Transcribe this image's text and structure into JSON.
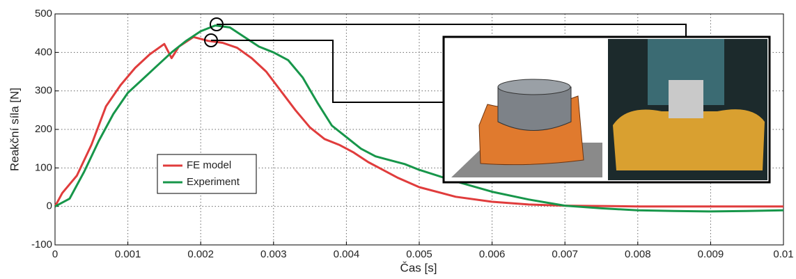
{
  "chart_data": {
    "type": "line",
    "x_label": "Čas [s]",
    "y_label": "Reakční síla [N]",
    "xlim": [
      0,
      0.01
    ],
    "ylim": [
      -100,
      500
    ],
    "xticks": [
      0,
      0.001,
      0.002,
      0.003,
      0.004,
      0.005,
      0.006,
      0.007,
      0.008,
      0.009,
      0.01
    ],
    "yticks": [
      -100,
      0,
      100,
      200,
      300,
      400,
      500
    ],
    "grid": true,
    "legend": "center left",
    "series": [
      {
        "name": "FE model",
        "color": "#e03c3c",
        "x": [
          0,
          0.0001,
          0.0003,
          0.0005,
          0.0007,
          0.0009,
          0.0011,
          0.0013,
          0.0015,
          0.0016,
          0.0017,
          0.0019,
          0.0021,
          0.0023,
          0.0025,
          0.0027,
          0.0029,
          0.0031,
          0.0033,
          0.0035,
          0.0037,
          0.0039,
          0.0041,
          0.0043,
          0.0045,
          0.0047,
          0.005,
          0.0055,
          0.006,
          0.0065,
          0.007,
          0.008,
          0.009,
          0.01
        ],
        "values": [
          0,
          35,
          80,
          160,
          260,
          315,
          360,
          395,
          422,
          385,
          415,
          440,
          430,
          425,
          412,
          385,
          350,
          300,
          250,
          205,
          175,
          160,
          140,
          115,
          95,
          75,
          50,
          25,
          12,
          5,
          2,
          0,
          0,
          0
        ]
      },
      {
        "name": "Experiment",
        "color": "#17964a",
        "x": [
          0,
          0.0002,
          0.0004,
          0.0006,
          0.0008,
          0.001,
          0.0012,
          0.0014,
          0.0016,
          0.0018,
          0.002,
          0.0022,
          0.0024,
          0.0026,
          0.0028,
          0.003,
          0.0032,
          0.0034,
          0.0036,
          0.0038,
          0.004,
          0.0042,
          0.0044,
          0.0046,
          0.0048,
          0.005,
          0.0055,
          0.006,
          0.0065,
          0.007,
          0.0075,
          0.008,
          0.0085,
          0.009,
          0.0095,
          0.01
        ],
        "values": [
          0,
          20,
          90,
          170,
          240,
          295,
          330,
          365,
          400,
          430,
          455,
          470,
          465,
          440,
          415,
          400,
          380,
          335,
          270,
          210,
          180,
          150,
          130,
          120,
          110,
          95,
          65,
          38,
          18,
          2,
          -5,
          -10,
          -12,
          -13,
          -12,
          -10
        ]
      }
    ]
  }
}
